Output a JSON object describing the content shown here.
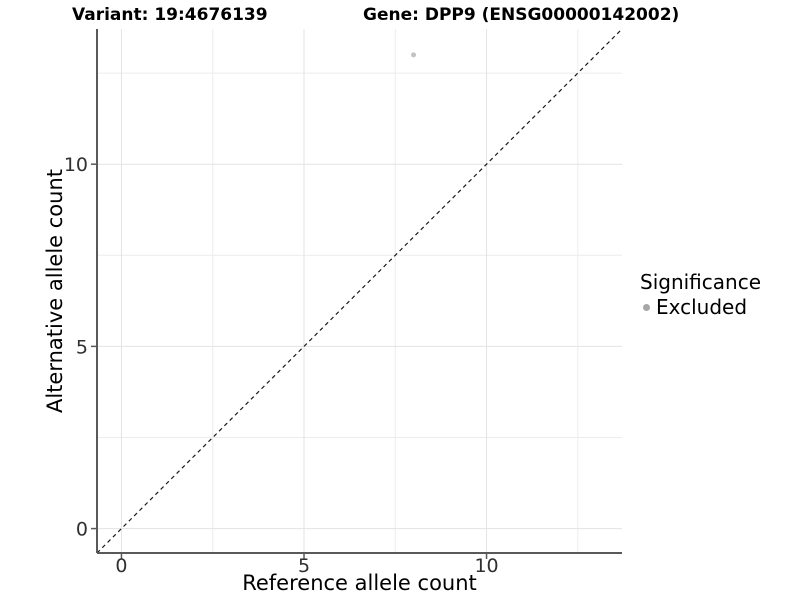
{
  "titles": {
    "left": "Variant: 19:4676139",
    "right": "Gene: DPP9 (ENSG00000142002)"
  },
  "chart_data": {
    "type": "scatter",
    "xlabel": "Reference allele count",
    "ylabel": "Alternative allele count",
    "xlim": [
      -0.67,
      13.71
    ],
    "ylim": [
      -0.67,
      13.71
    ],
    "x_ticks": [
      0,
      5,
      10
    ],
    "y_ticks": [
      0,
      5,
      10
    ],
    "major_gridlines": [
      0,
      5,
      10
    ],
    "minor_gridlines": [
      2.5,
      7.5,
      12.5
    ],
    "grid": true,
    "series": [
      {
        "name": "Excluded",
        "color": "#c3c3c3",
        "point_radius": 2.5,
        "points": [
          {
            "x": 8,
            "y": 13
          }
        ]
      }
    ],
    "identity_line": {
      "slope": 1,
      "intercept": 0,
      "style": "dashed",
      "from": -0.67,
      "to": 13.66
    },
    "legend": {
      "title": "Significance",
      "position": "right",
      "items": [
        {
          "label": "Excluded",
          "color": "#a6a6a6"
        }
      ]
    }
  },
  "style": {
    "background": "#ffffff",
    "grid_major": "#e3e3e3",
    "grid_minor": "#ececec",
    "axis_line": "#595959",
    "tick_text": "#303030",
    "dashed_line": "#1a1a1a"
  }
}
